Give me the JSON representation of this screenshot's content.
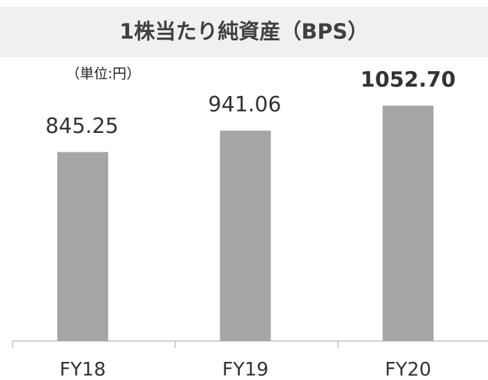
{
  "chart_data": {
    "type": "bar",
    "title": "1株当たり純資産（BPS）",
    "unit_note": "（単位:円）",
    "categories": [
      "FY18",
      "FY19",
      "FY20"
    ],
    "values": [
      845.25,
      941.06,
      1052.7
    ],
    "value_labels": [
      "845.25",
      "941.06",
      "1052.70"
    ],
    "color": "#a6a6a6",
    "ylim": [
      0,
      1200
    ]
  }
}
